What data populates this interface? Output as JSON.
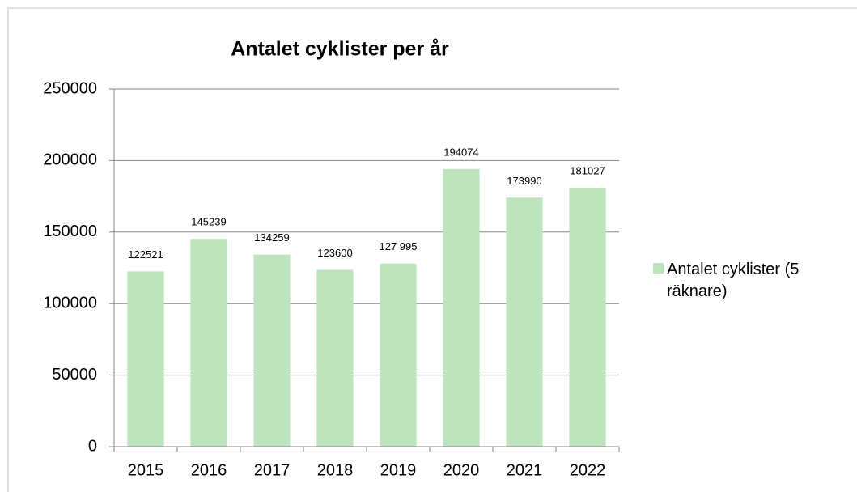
{
  "chart_data": {
    "type": "bar",
    "title": "Antalet cyklister per år",
    "categories": [
      "2015",
      "2016",
      "2017",
      "2018",
      "2019",
      "2020",
      "2021",
      "2022"
    ],
    "series": [
      {
        "name": "Antalet cyklister (5 räknare)",
        "color": "#bde4bd",
        "values": [
          122521,
          145239,
          134259,
          123600,
          127995,
          194074,
          173990,
          181027
        ],
        "value_labels": [
          "122521",
          "145239",
          "134259",
          "123600",
          "127 995",
          "194074",
          "173990",
          "181027"
        ]
      }
    ],
    "ylim": [
      0,
      250000
    ],
    "yticks": [
      0,
      50000,
      100000,
      150000,
      200000,
      250000
    ],
    "grid": true,
    "legend": "right"
  }
}
